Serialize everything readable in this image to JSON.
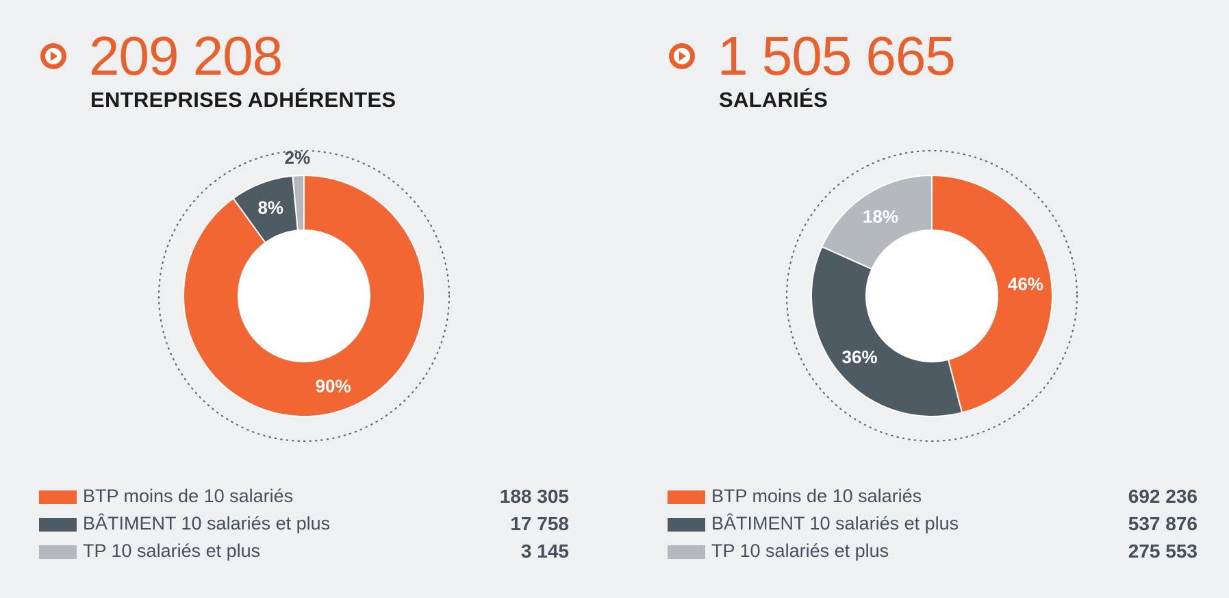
{
  "colors": {
    "accent": "#e8612d",
    "btp": "#f26633",
    "batiment": "#4f5b63",
    "tp": "#b3b9bf",
    "background": "#eff0f2"
  },
  "panels": [
    {
      "number": "209 208",
      "title": "ENTREPRISES ADHÉRENTES",
      "legend": [
        {
          "label": "BTP moins de 10 salariés",
          "value": "188 305"
        },
        {
          "label": "BÂTIMENT 10 salariés et plus",
          "value": "17 758"
        },
        {
          "label": "TP 10 salariés et plus",
          "value": "3 145"
        }
      ]
    },
    {
      "number": "1 505 665",
      "title": "SALARIÉS",
      "legend": [
        {
          "label": "BTP moins de 10 salariés",
          "value": "692 236"
        },
        {
          "label": "BÂTIMENT 10 salariés et plus",
          "value": "537 876"
        },
        {
          "label": "TP 10 salariés et plus",
          "value": "275 553"
        }
      ]
    }
  ],
  "chart_data": [
    {
      "type": "pie",
      "title": "ENTREPRISES ADHÉRENTES",
      "categories": [
        "BTP moins de 10 salariés",
        "BÂTIMENT 10 salariés et plus",
        "TP 10 salariés et plus"
      ],
      "values": [
        188305,
        17758,
        3145
      ],
      "percent_labels": [
        "90%",
        "8%",
        "2%"
      ],
      "colors": [
        "#f26633",
        "#4f5b63",
        "#b3b9bf"
      ],
      "label_colors": [
        "#ffffff",
        "#ffffff",
        "#46505a"
      ],
      "total": 209208
    },
    {
      "type": "pie",
      "title": "SALARIÉS",
      "categories": [
        "BTP moins de 10 salariés",
        "BÂTIMENT 10 salariés et plus",
        "TP 10 salariés et plus"
      ],
      "values": [
        692236,
        537876,
        275553
      ],
      "percent_labels": [
        "46%",
        "36%",
        "18%"
      ],
      "colors": [
        "#f26633",
        "#4f5b63",
        "#b3b9bf"
      ],
      "label_colors": [
        "#ffffff",
        "#ffffff",
        "#ffffff"
      ],
      "total": 1505665
    }
  ]
}
